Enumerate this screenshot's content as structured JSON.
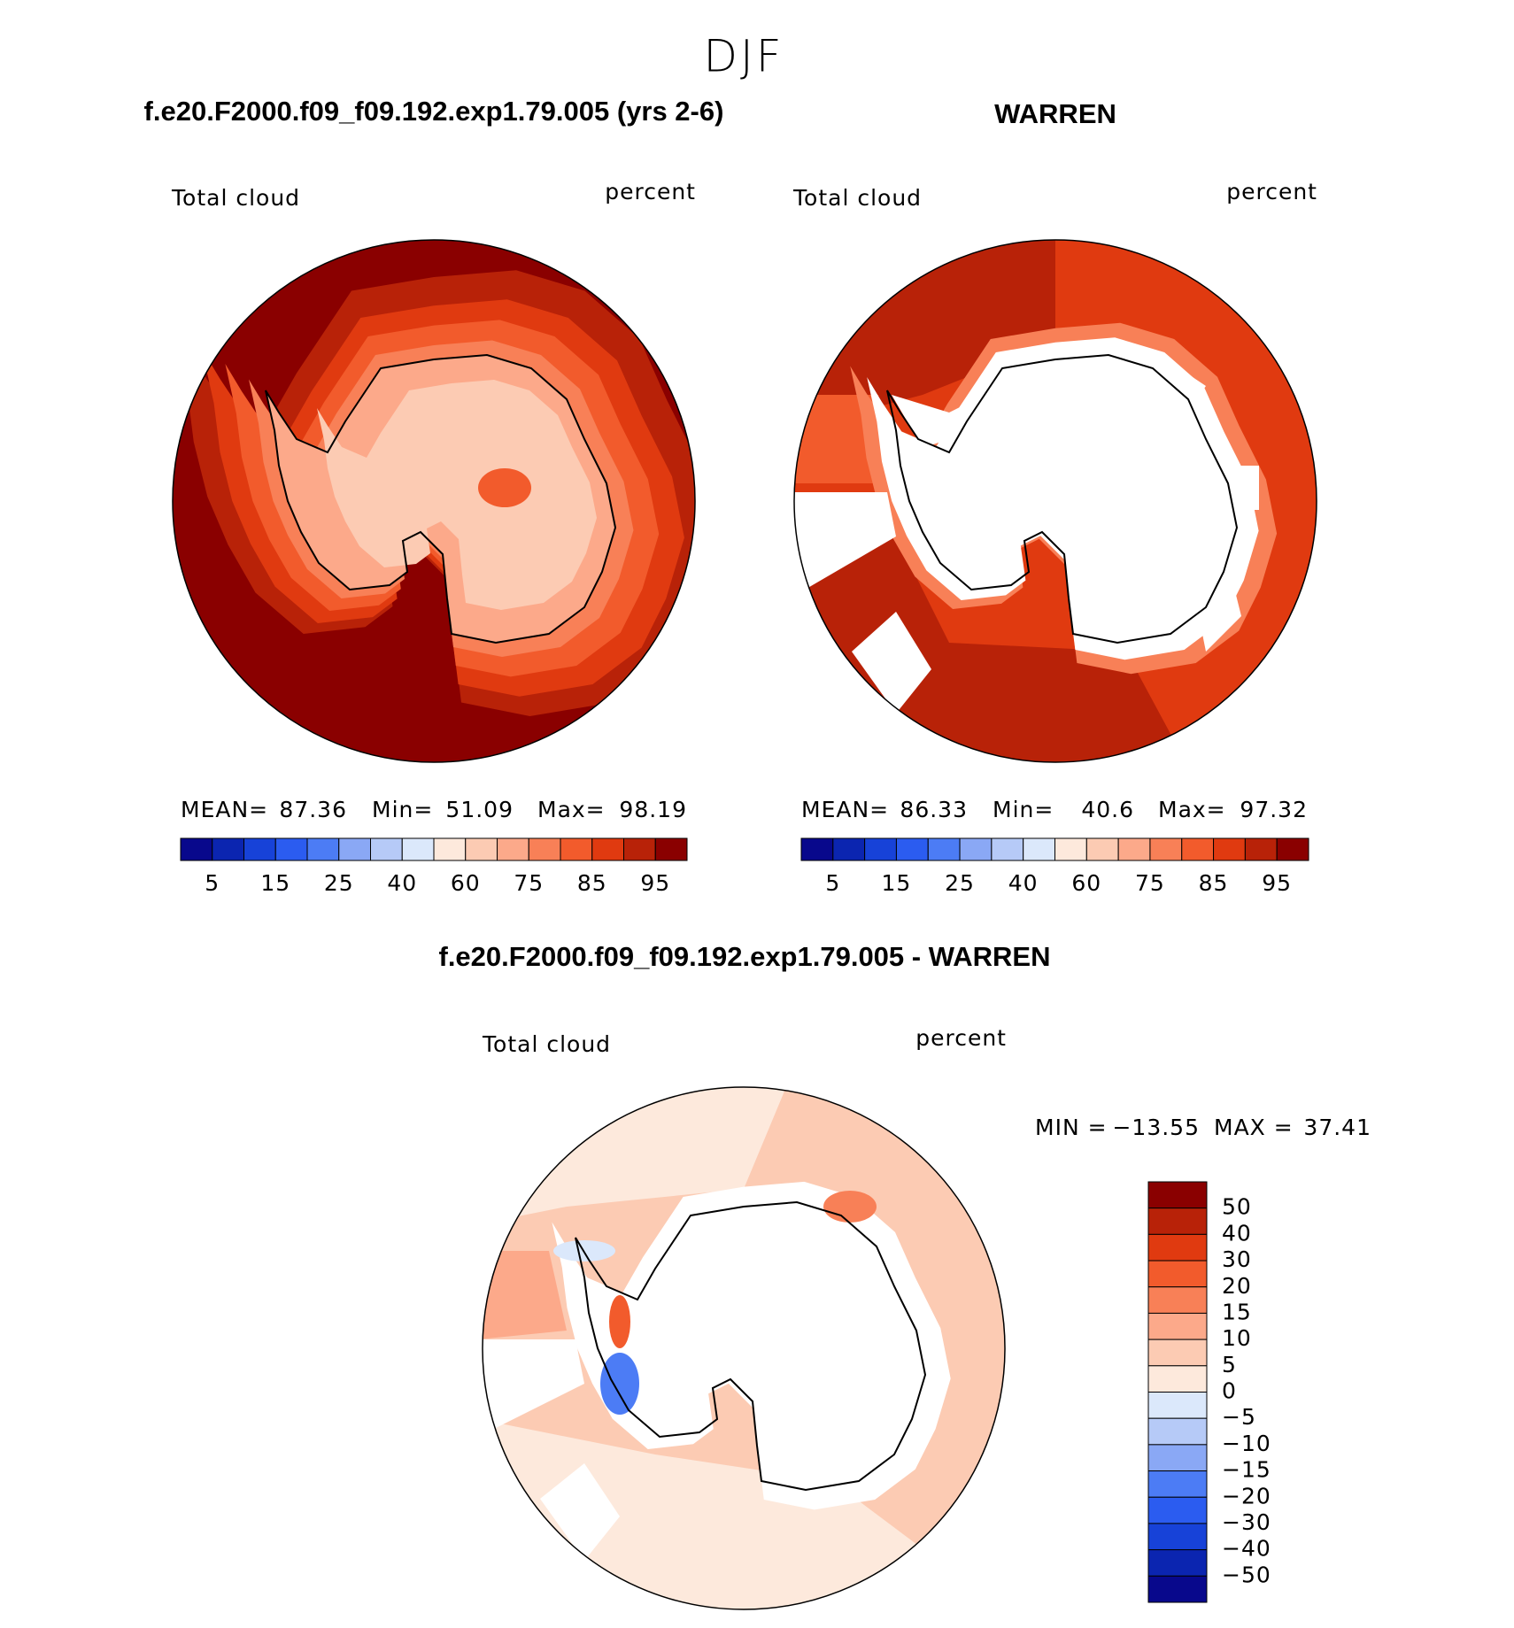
{
  "title": "DJF",
  "panels": [
    {
      "title": "f.e20.F2000.f09_f09.192.exp1.79.005 (yrs 2-6)",
      "variable": "Total cloud",
      "units": "percent",
      "stats": {
        "mean_label": "MEAN=",
        "mean": 87.36,
        "min_label": "Min=",
        "min": 51.09,
        "max_label": "Max=",
        "max": 98.19
      },
      "colorbar": {
        "orientation": "horizontal",
        "colors": [
          "#08088c",
          "#0b25b0",
          "#1742d8",
          "#2b5cf0",
          "#4c7cf5",
          "#8aa8f5",
          "#b6caf7",
          "#dbe8fb",
          "#fde9dc",
          "#fccbb3",
          "#fca98a",
          "#f88057",
          "#f25b2c",
          "#e03a10",
          "#b82208",
          "#8a0000"
        ],
        "ticks": [
          5,
          15,
          25,
          40,
          60,
          75,
          85,
          95
        ]
      }
    },
    {
      "title": "WARREN",
      "variable": "Total cloud",
      "units": "percent",
      "stats": {
        "mean_label": "MEAN=",
        "mean": 86.33,
        "min_label": "Min=",
        "min": 40.6,
        "max_label": "Max=",
        "max": 97.32
      },
      "colorbar": {
        "orientation": "horizontal",
        "colors": [
          "#08088c",
          "#0b25b0",
          "#1742d8",
          "#2b5cf0",
          "#4c7cf5",
          "#8aa8f5",
          "#b6caf7",
          "#dbe8fb",
          "#fde9dc",
          "#fccbb3",
          "#fca98a",
          "#f88057",
          "#f25b2c",
          "#e03a10",
          "#b82208",
          "#8a0000"
        ],
        "ticks": [
          5,
          15,
          25,
          40,
          60,
          75,
          85,
          95
        ]
      }
    },
    {
      "title": "f.e20.F2000.f09_f09.192.exp1.79.005 - WARREN",
      "variable": "Total cloud",
      "units": "percent",
      "stats": {
        "min_label": "MIN =",
        "min": {
          "value": -13.55,
          "label": "−13.55"
        },
        "max_label": "MAX =",
        "max": 37.41
      },
      "colorbar": {
        "orientation": "vertical",
        "colors": [
          "#8a0000",
          "#b82208",
          "#e03a10",
          "#f25b2c",
          "#f88057",
          "#fca98a",
          "#fccbb3",
          "#fde9dc",
          "#dbe8fb",
          "#b6caf7",
          "#8aa8f5",
          "#4c7cf5",
          "#2b5cf0",
          "#1742d8",
          "#0b25b0",
          "#08088c"
        ],
        "ticks": [
          50,
          40,
          30,
          20,
          15,
          10,
          5,
          0,
          {
            "value": -5,
            "label": "−5"
          },
          {
            "value": -10,
            "label": "−10"
          },
          {
            "value": -15,
            "label": "−15"
          },
          {
            "value": -20,
            "label": "−20"
          },
          {
            "value": -30,
            "label": "−30"
          },
          {
            "value": -40,
            "label": "−40"
          },
          {
            "value": -50,
            "label": "−50"
          }
        ]
      }
    }
  ]
}
